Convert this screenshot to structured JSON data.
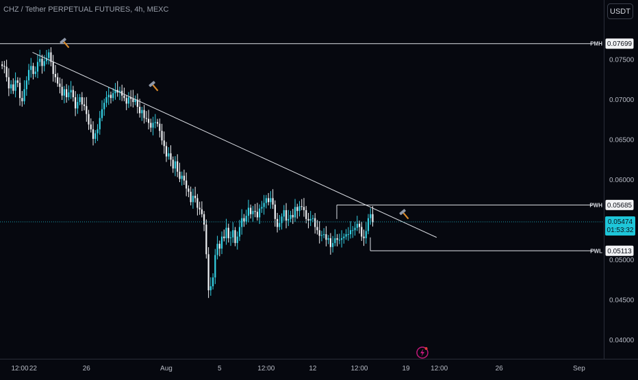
{
  "header": {
    "title": "CHZ / Tether PERPETUAL FUTURES, 4h, MEXC",
    "currency_button": "USDT"
  },
  "colors": {
    "background": "#06080f",
    "candle_up": "#35d3e6",
    "candle_down": "#f1f3f6",
    "line": "#dfe2e8",
    "price_tag": "#1ec6d9",
    "hammer_handle": "#d98a2b",
    "hammer_head": "#8f98a8",
    "flash_icon": "#c2187a"
  },
  "chart_data": {
    "type": "candlestick",
    "timeframe": "4h",
    "y_axis": {
      "ticks": [
        {
          "value": 0.075,
          "label": "0.07500"
        },
        {
          "value": 0.07,
          "label": "0.07000"
        },
        {
          "value": 0.065,
          "label": "0.06500"
        },
        {
          "value": 0.06,
          "label": "0.06000"
        },
        {
          "value": 0.05,
          "label": "0.05000"
        },
        {
          "value": 0.045,
          "label": "0.04500"
        },
        {
          "value": 0.04,
          "label": "0.04000"
        }
      ],
      "ylim": [
        0.0365,
        0.0828
      ]
    },
    "x_axis": {
      "ticks": [
        {
          "date": "Jul 21 12:00",
          "label": "12:00"
        },
        {
          "date": "Jul 22",
          "label": "22"
        },
        {
          "date": "Jul 26",
          "label": "26"
        },
        {
          "date": "Aug 1",
          "label": "Aug"
        },
        {
          "date": "Aug 5",
          "label": "5"
        },
        {
          "date": "Aug 8 12:00",
          "label": "12:00"
        },
        {
          "date": "Aug 12",
          "label": "12"
        },
        {
          "date": "Aug 15 12:00",
          "label": "12:00"
        },
        {
          "date": "Aug 19",
          "label": "19"
        },
        {
          "date": "Aug 21 12:00",
          "label": "12:00"
        },
        {
          "date": "Aug 26",
          "label": "26"
        },
        {
          "date": "Sep 1",
          "label": "Sep"
        }
      ]
    },
    "levels": [
      {
        "label": "PMH",
        "value": 0.07699,
        "value_label": "0.07699"
      },
      {
        "label": "PWH",
        "value": 0.05685,
        "value_label": "0.05685"
      },
      {
        "label": "PWL",
        "value": 0.05113,
        "value_label": "0.05113"
      }
    ],
    "current_price": {
      "value": 0.05474,
      "value_label": "0.05474",
      "countdown": "01:53:32"
    },
    "trendline": {
      "start": {
        "date": "Jul 22",
        "price": 0.0759
      },
      "end": {
        "date": "Aug 21",
        "price": 0.0528
      }
    },
    "closes": [
      0.0742,
      0.0741,
      0.0728,
      0.0714,
      0.0719,
      0.0711,
      0.0724,
      0.0721,
      0.0702,
      0.0698,
      0.0713,
      0.0724,
      0.0737,
      0.0742,
      0.0732,
      0.0735,
      0.0747,
      0.0751,
      0.0742,
      0.0748,
      0.0752,
      0.0759,
      0.0747,
      0.0732,
      0.0728,
      0.072,
      0.0716,
      0.0705,
      0.0713,
      0.0703,
      0.0709,
      0.0712,
      0.0703,
      0.0689,
      0.0697,
      0.0703,
      0.0694,
      0.0692,
      0.0682,
      0.0669,
      0.0663,
      0.0651,
      0.0658,
      0.0663,
      0.0677,
      0.0688,
      0.0696,
      0.0703,
      0.0706,
      0.0702,
      0.0708,
      0.0712,
      0.0709,
      0.0711,
      0.0705,
      0.0702,
      0.0695,
      0.0703,
      0.0701,
      0.0697,
      0.07,
      0.0691,
      0.0683,
      0.0687,
      0.0677,
      0.0676,
      0.0671,
      0.0665,
      0.0671,
      0.0672,
      0.067,
      0.0661,
      0.0649,
      0.0642,
      0.0629,
      0.0633,
      0.0625,
      0.0614,
      0.0623,
      0.061,
      0.0601,
      0.0605,
      0.0599,
      0.0589,
      0.0585,
      0.0572,
      0.058,
      0.0577,
      0.0565,
      0.0563,
      0.0557,
      0.0544,
      0.0507,
      0.0462,
      0.0467,
      0.0478,
      0.0506,
      0.052,
      0.0514,
      0.0529,
      0.0527,
      0.054,
      0.0527,
      0.0528,
      0.0537,
      0.0521,
      0.0529,
      0.0541,
      0.0552,
      0.0548,
      0.0555,
      0.0565,
      0.0557,
      0.0561,
      0.056,
      0.0553,
      0.0564,
      0.0566,
      0.0571,
      0.0577,
      0.0572,
      0.0577,
      0.0569,
      0.0551,
      0.0541,
      0.0546,
      0.0554,
      0.0562,
      0.0549,
      0.0551,
      0.0556,
      0.0553,
      0.0566,
      0.0561,
      0.0567,
      0.0566,
      0.0562,
      0.0551,
      0.0549,
      0.0551,
      0.0552,
      0.0541,
      0.0537,
      0.053,
      0.0531,
      0.0532,
      0.0525,
      0.0527,
      0.0516,
      0.0521,
      0.0527,
      0.0525,
      0.0525,
      0.0527,
      0.0529,
      0.0532,
      0.0532,
      0.0537,
      0.0537,
      0.054,
      0.0545,
      0.0541,
      0.0529,
      0.0527,
      0.0536,
      0.0552,
      0.0557,
      0.0547
    ]
  }
}
